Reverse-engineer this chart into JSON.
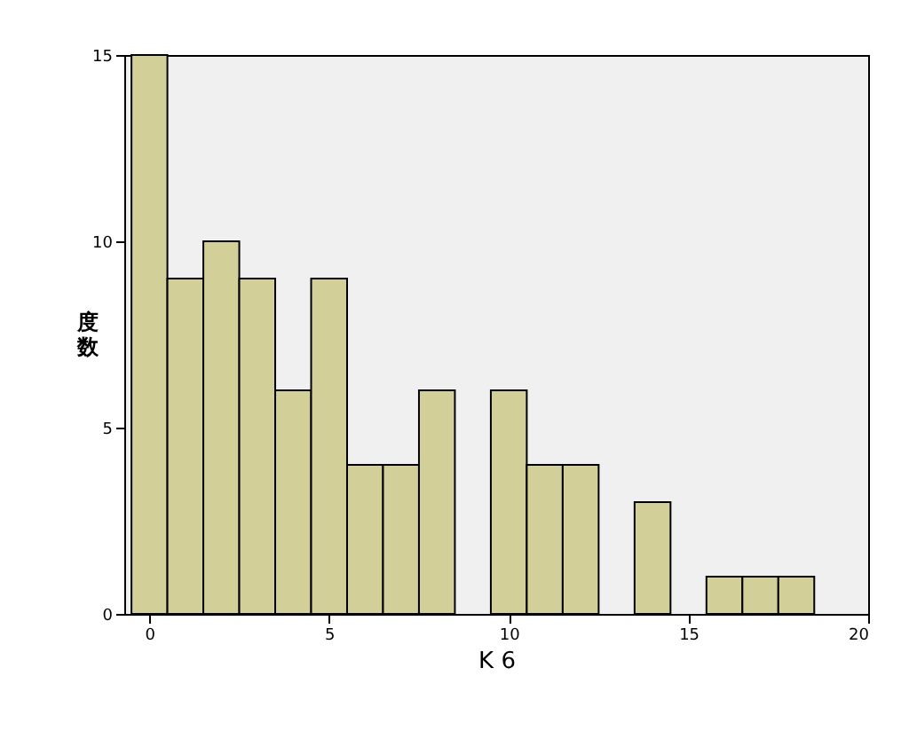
{
  "chart_data": {
    "type": "histogram",
    "xlabel": "K 6",
    "ylabel": "度数",
    "bins": [
      -0.5,
      0.5,
      1.5,
      2.5,
      3.5,
      4.5,
      5.5,
      6.5,
      7.5,
      8.5,
      9.5,
      10.5,
      11.5,
      12.5,
      13.5,
      14.5,
      15.5,
      16.5,
      17.5,
      18.5
    ],
    "values": [
      15,
      9,
      10,
      9,
      6,
      9,
      4,
      4,
      6,
      0,
      6,
      4,
      4,
      0,
      3,
      0,
      1,
      1,
      1
    ],
    "color": "#d3cf98",
    "xlim": [
      -0.7,
      20
    ],
    "xticks": [
      0,
      5,
      10,
      15,
      20
    ],
    "ylim": [
      0,
      15
    ],
    "yticks": [
      0,
      5,
      10,
      15
    ],
    "grid": false
  }
}
